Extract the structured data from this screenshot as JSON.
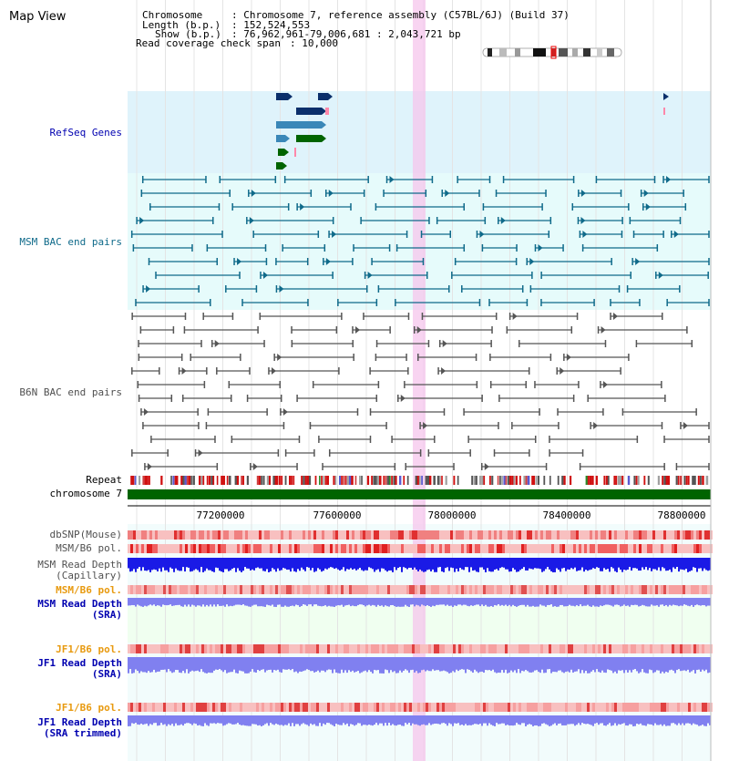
{
  "view_title": "Map View",
  "header": {
    "chromosome_label": "Chromosome",
    "chromosome_value": ": Chromosome 7, reference assembly (C57BL/6J) (Build 37)",
    "length_label": "Length (b.p.)",
    "length_value": ": 152,524,553",
    "show_label": "Show (b.p.)",
    "show_value": ": 76,962,961-79,006,681 : 2,043,721 bp",
    "coverage_label": "Read coverage check span",
    "coverage_value": ": 10,000"
  },
  "tracks": {
    "refseq": "RefSeq Genes",
    "msm_bac": "MSM BAC end pairs",
    "b6n_bac": "B6N BAC end pairs",
    "repeat": "Repeat",
    "chromosome": "chromosome 7",
    "dbsnp": "dbSNP(Mouse)",
    "msm_b6_pol_1": "MSM/B6 pol.",
    "msm_depth_cap_1": "MSM Read Depth",
    "msm_depth_cap_2": "(Capillary)",
    "msm_b6_pol_2": "MSM/B6 pol.",
    "msm_depth_sra_1": "MSM Read Depth",
    "msm_depth_sra_2": "(SRA)",
    "jf1_b6_pol_1": "JF1/B6 pol.",
    "jf1_depth_sra_1": "JF1 Read Depth",
    "jf1_depth_sra_2": "(SRA)",
    "jf1_b6_pol_2": "JF1/B6 pol.",
    "jf1_depth_trim_1": "JF1 Read Depth",
    "jf1_depth_trim_2": "(SRA trimmed)"
  },
  "axis": {
    "ticks": [
      "77200000",
      "77600000",
      "78000000",
      "78400000",
      "78800000"
    ]
  },
  "colors": {
    "refseq_bg": "#dff3fb",
    "msm_bac_bg": "#e6fbfb",
    "msm_bac_line": "#0f6a8a",
    "b6n_line": "#555555",
    "highlight": "#f5c6ec",
    "chromosome_bar": "#006400",
    "gene_dark": "#0b2f6b",
    "gene_mid": "#3a87b8",
    "gene_green": "#006400",
    "depth_dark": "#1a1ae6",
    "depth_light": "#8080f0",
    "label_blue": "#0000b0",
    "label_orange": "#e89a10",
    "label_teal": "#0f6a8a",
    "label_grey": "#505050"
  }
}
